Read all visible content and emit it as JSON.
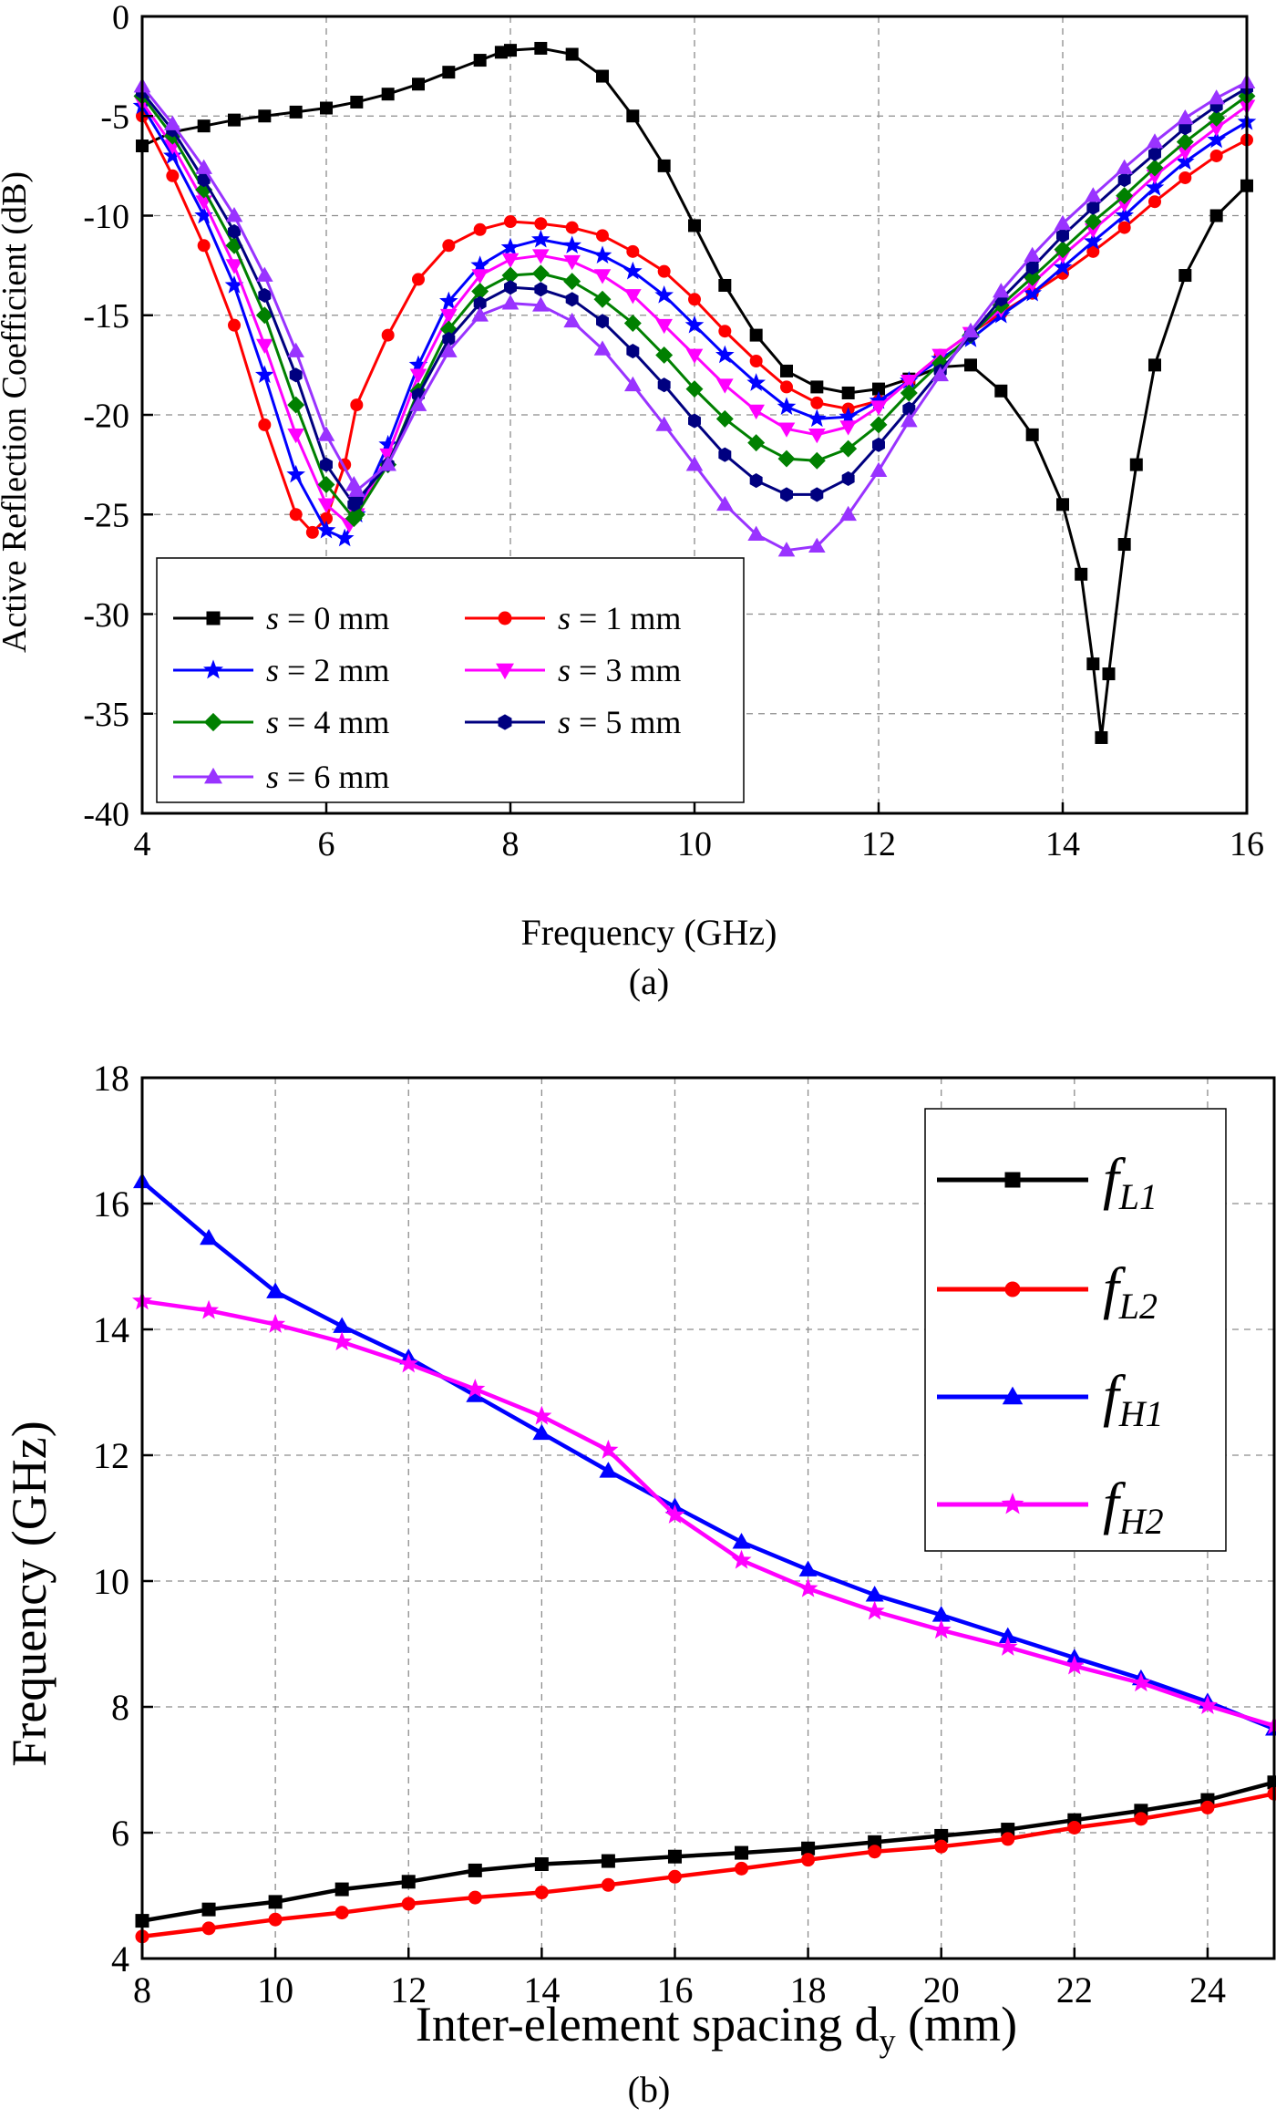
{
  "chart_data": [
    {
      "type": "line",
      "title": "",
      "caption": "(a)",
      "xlabel": "Frequency (GHz)",
      "ylabel": "Active Reflection Coefficient (dB)",
      "xlim": [
        4,
        16
      ],
      "ylim": [
        -40,
        0
      ],
      "xticks": [
        4,
        6,
        8,
        10,
        12,
        14,
        16
      ],
      "yticks": [
        0,
        -5,
        -10,
        -15,
        -20,
        -25,
        -30,
        -35,
        -40
      ],
      "grid": true,
      "legend_position": "bottom-left",
      "series": [
        {
          "name": "s = 0 mm",
          "var": "s",
          "rest": " = 0 mm",
          "color": "#000000",
          "marker": "square",
          "x": [
            4.0,
            4.33,
            4.67,
            5.0,
            5.33,
            5.67,
            6.0,
            6.33,
            6.67,
            7.0,
            7.33,
            7.67,
            7.9,
            8.0,
            8.33,
            8.67,
            9.0,
            9.33,
            9.67,
            10.0,
            10.33,
            10.67,
            11.0,
            11.33,
            11.67,
            12.0,
            12.33,
            12.67,
            13.0,
            13.33,
            13.67,
            14.0,
            14.2,
            14.33,
            14.42,
            14.5,
            14.67,
            14.8,
            15.0,
            15.33,
            15.67,
            16.0
          ],
          "y": [
            -6.5,
            -5.8,
            -5.5,
            -5.2,
            -5.0,
            -4.8,
            -4.6,
            -4.3,
            -3.9,
            -3.4,
            -2.8,
            -2.2,
            -1.8,
            -1.7,
            -1.6,
            -1.9,
            -3.0,
            -5.0,
            -7.5,
            -10.5,
            -13.5,
            -16.0,
            -17.8,
            -18.6,
            -18.9,
            -18.7,
            -18.2,
            -17.6,
            -17.5,
            -18.8,
            -21.0,
            -24.5,
            -28.0,
            -32.5,
            -36.2,
            -33.0,
            -26.5,
            -22.5,
            -17.5,
            -13.0,
            -10.0,
            -8.5
          ]
        },
        {
          "name": "s = 1 mm",
          "var": "s",
          "rest": " = 1 mm",
          "color": "#ff0000",
          "marker": "circle",
          "x": [
            4.0,
            4.33,
            4.67,
            5.0,
            5.33,
            5.67,
            5.85,
            6.0,
            6.2,
            6.33,
            6.67,
            7.0,
            7.33,
            7.67,
            8.0,
            8.33,
            8.67,
            9.0,
            9.33,
            9.67,
            10.0,
            10.33,
            10.67,
            11.0,
            11.33,
            11.67,
            12.0,
            12.33,
            12.67,
            13.0,
            13.33,
            13.67,
            14.0,
            14.33,
            14.67,
            15.0,
            15.33,
            15.67,
            16.0
          ],
          "y": [
            -5.0,
            -8.0,
            -11.5,
            -15.5,
            -20.5,
            -25.0,
            -25.9,
            -25.2,
            -22.5,
            -19.5,
            -16.0,
            -13.2,
            -11.5,
            -10.7,
            -10.3,
            -10.4,
            -10.6,
            -11.0,
            -11.8,
            -12.8,
            -14.2,
            -15.8,
            -17.3,
            -18.6,
            -19.4,
            -19.7,
            -19.3,
            -18.3,
            -17.0,
            -15.9,
            -14.9,
            -13.9,
            -12.9,
            -11.8,
            -10.6,
            -9.3,
            -8.1,
            -7.0,
            -6.2
          ]
        },
        {
          "name": "s = 2 mm",
          "var": "s",
          "rest": " = 2 mm",
          "color": "#0000ff",
          "marker": "star",
          "x": [
            4.0,
            4.33,
            4.67,
            5.0,
            5.33,
            5.67,
            6.0,
            6.2,
            6.33,
            6.67,
            7.0,
            7.33,
            7.67,
            8.0,
            8.33,
            8.67,
            9.0,
            9.33,
            9.67,
            10.0,
            10.33,
            10.67,
            11.0,
            11.33,
            11.67,
            12.0,
            12.33,
            12.67,
            13.0,
            13.33,
            13.67,
            14.0,
            14.33,
            14.67,
            15.0,
            15.33,
            15.67,
            16.0
          ],
          "y": [
            -4.5,
            -7.0,
            -10.0,
            -13.5,
            -18.0,
            -23.0,
            -25.8,
            -26.2,
            -25.0,
            -21.5,
            -17.5,
            -14.3,
            -12.5,
            -11.6,
            -11.2,
            -11.5,
            -12.0,
            -12.8,
            -14.0,
            -15.5,
            -17.0,
            -18.4,
            -19.6,
            -20.2,
            -20.1,
            -19.3,
            -18.3,
            -17.2,
            -16.2,
            -15.0,
            -13.9,
            -12.6,
            -11.3,
            -10.0,
            -8.6,
            -7.3,
            -6.2,
            -5.3
          ]
        },
        {
          "name": "s = 3 mm",
          "var": "s",
          "rest": " = 3 mm",
          "color": "#ff00ff",
          "marker": "triangle-down",
          "x": [
            4.0,
            4.33,
            4.67,
            5.0,
            5.33,
            5.67,
            6.0,
            6.25,
            6.33,
            6.67,
            7.0,
            7.33,
            7.67,
            8.0,
            8.33,
            8.67,
            9.0,
            9.33,
            9.67,
            10.0,
            10.33,
            10.67,
            11.0,
            11.33,
            11.67,
            12.0,
            12.33,
            12.67,
            13.0,
            13.33,
            13.67,
            14.0,
            14.33,
            14.67,
            15.0,
            15.33,
            15.67,
            16.0
          ],
          "y": [
            -4.3,
            -6.5,
            -9.3,
            -12.5,
            -16.5,
            -21.0,
            -24.5,
            -25.5,
            -25.0,
            -22.0,
            -18.0,
            -15.0,
            -13.0,
            -12.2,
            -12.0,
            -12.3,
            -13.0,
            -14.0,
            -15.5,
            -17.0,
            -18.5,
            -19.8,
            -20.7,
            -21.0,
            -20.6,
            -19.6,
            -18.3,
            -17.0,
            -15.9,
            -14.7,
            -13.4,
            -12.0,
            -10.7,
            -9.4,
            -8.0,
            -6.8,
            -5.6,
            -4.5
          ]
        },
        {
          "name": "s = 4 mm",
          "var": "s",
          "rest": " = 4 mm",
          "color": "#008000",
          "marker": "diamond",
          "x": [
            4.0,
            4.33,
            4.67,
            5.0,
            5.33,
            5.67,
            6.0,
            6.3,
            6.33,
            6.67,
            7.0,
            7.33,
            7.67,
            8.0,
            8.33,
            8.67,
            9.0,
            9.33,
            9.67,
            10.0,
            10.33,
            10.67,
            11.0,
            11.33,
            11.67,
            12.0,
            12.33,
            12.67,
            13.0,
            13.33,
            13.67,
            14.0,
            14.33,
            14.67,
            15.0,
            15.33,
            15.67,
            16.0
          ],
          "y": [
            -4.0,
            -6.0,
            -8.7,
            -11.5,
            -15.0,
            -19.5,
            -23.5,
            -25.2,
            -25.0,
            -22.5,
            -18.8,
            -15.7,
            -13.8,
            -13.0,
            -12.9,
            -13.3,
            -14.2,
            -15.4,
            -17.0,
            -18.7,
            -20.2,
            -21.4,
            -22.2,
            -22.3,
            -21.7,
            -20.5,
            -18.9,
            -17.4,
            -16.0,
            -14.5,
            -13.1,
            -11.7,
            -10.3,
            -9.0,
            -7.6,
            -6.3,
            -5.1,
            -4.0
          ]
        },
        {
          "name": "s = 5 mm",
          "var": "s",
          "rest": " = 5 mm",
          "color": "#000080",
          "marker": "hexagon",
          "x": [
            4.0,
            4.33,
            4.67,
            5.0,
            5.33,
            5.67,
            6.0,
            6.3,
            6.33,
            6.67,
            7.0,
            7.33,
            7.67,
            8.0,
            8.33,
            8.67,
            9.0,
            9.33,
            9.67,
            10.0,
            10.33,
            10.67,
            11.0,
            11.33,
            11.67,
            12.0,
            12.33,
            12.67,
            13.0,
            13.33,
            13.67,
            14.0,
            14.33,
            14.67,
            15.0,
            15.33,
            15.67,
            16.0
          ],
          "y": [
            -3.8,
            -5.7,
            -8.2,
            -10.8,
            -14.0,
            -18.0,
            -22.5,
            -24.5,
            -24.3,
            -22.5,
            -19.0,
            -16.2,
            -14.4,
            -13.6,
            -13.7,
            -14.2,
            -15.3,
            -16.8,
            -18.5,
            -20.3,
            -22.0,
            -23.3,
            -24.0,
            -24.0,
            -23.2,
            -21.5,
            -19.7,
            -17.8,
            -16.0,
            -14.2,
            -12.6,
            -11.0,
            -9.6,
            -8.2,
            -6.9,
            -5.6,
            -4.5,
            -3.6
          ]
        },
        {
          "name": "s = 6 mm",
          "var": "s",
          "rest": " = 6 mm",
          "color": "#9933ff",
          "marker": "triangle-up",
          "x": [
            4.0,
            4.33,
            4.67,
            5.0,
            5.33,
            5.67,
            6.0,
            6.3,
            6.33,
            6.67,
            7.0,
            7.33,
            7.67,
            8.0,
            8.33,
            8.67,
            9.0,
            9.33,
            9.67,
            10.0,
            10.33,
            10.67,
            11.0,
            11.33,
            11.67,
            12.0,
            12.33,
            12.67,
            13.0,
            13.33,
            13.67,
            14.0,
            14.33,
            14.67,
            15.0,
            15.33,
            15.67,
            16.0
          ],
          "y": [
            -3.5,
            -5.4,
            -7.6,
            -10.0,
            -13.0,
            -16.8,
            -21.0,
            -23.5,
            -23.8,
            -22.5,
            -19.5,
            -16.8,
            -15.0,
            -14.4,
            -14.5,
            -15.3,
            -16.7,
            -18.5,
            -20.5,
            -22.5,
            -24.5,
            -26.0,
            -26.8,
            -26.6,
            -25.0,
            -22.8,
            -20.3,
            -18.0,
            -15.8,
            -13.8,
            -12.0,
            -10.4,
            -9.0,
            -7.6,
            -6.3,
            -5.1,
            -4.1,
            -3.3
          ]
        }
      ]
    },
    {
      "type": "line",
      "title": "",
      "caption": "(b)",
      "xlabel_main": "Inter-element spacing d",
      "xlabel_sub": "y",
      "xlabel_unit": " (mm)",
      "ylabel": "Frequency (GHz)",
      "xlim": [
        8,
        25
      ],
      "ylim": [
        4,
        18
      ],
      "xticks": [
        8,
        10,
        12,
        14,
        16,
        18,
        20,
        22,
        24
      ],
      "yticks": [
        4,
        6,
        8,
        10,
        12,
        14,
        16,
        18
      ],
      "grid": true,
      "legend_position": "top-right",
      "series": [
        {
          "name": "fL1",
          "base": "f",
          "sub": "L1",
          "color": "#000000",
          "marker": "square",
          "x": [
            8,
            9,
            10,
            11,
            12,
            13,
            14,
            15,
            16,
            17,
            18,
            19,
            20,
            21,
            22,
            23,
            24,
            25
          ],
          "y": [
            4.6,
            4.78,
            4.9,
            5.1,
            5.22,
            5.4,
            5.5,
            5.55,
            5.62,
            5.68,
            5.75,
            5.85,
            5.95,
            6.05,
            6.2,
            6.35,
            6.52,
            6.8
          ]
        },
        {
          "name": "fL2",
          "base": "f",
          "sub": "L2",
          "color": "#ff0000",
          "marker": "circle",
          "x": [
            8,
            9,
            10,
            11,
            12,
            13,
            14,
            15,
            16,
            17,
            18,
            19,
            20,
            21,
            22,
            23,
            24,
            25
          ],
          "y": [
            4.35,
            4.48,
            4.62,
            4.73,
            4.87,
            4.97,
            5.05,
            5.17,
            5.3,
            5.43,
            5.57,
            5.7,
            5.78,
            5.9,
            6.08,
            6.22,
            6.4,
            6.62
          ]
        },
        {
          "name": "fH1",
          "base": "f",
          "sub": "H1",
          "color": "#0000ff",
          "marker": "triangle-up",
          "x": [
            8,
            9,
            10,
            11,
            12,
            13,
            14,
            15,
            16,
            17,
            18,
            19,
            20,
            21,
            22,
            23,
            24,
            25
          ],
          "y": [
            16.35,
            15.45,
            14.6,
            14.05,
            13.55,
            12.95,
            12.35,
            11.75,
            11.18,
            10.62,
            10.18,
            9.78,
            9.46,
            9.12,
            8.78,
            8.45,
            8.08,
            7.65
          ]
        },
        {
          "name": "fH2",
          "base": "f",
          "sub": "H2",
          "color": "#ff00ff",
          "marker": "star",
          "x": [
            8,
            9,
            10,
            11,
            12,
            13,
            14,
            15,
            16,
            17,
            18,
            19,
            20,
            21,
            22,
            23,
            24,
            25
          ],
          "y": [
            14.45,
            14.3,
            14.08,
            13.8,
            13.45,
            13.05,
            12.62,
            12.08,
            11.05,
            10.33,
            9.88,
            9.52,
            9.22,
            8.95,
            8.65,
            8.38,
            8.02,
            7.7
          ]
        }
      ]
    }
  ]
}
